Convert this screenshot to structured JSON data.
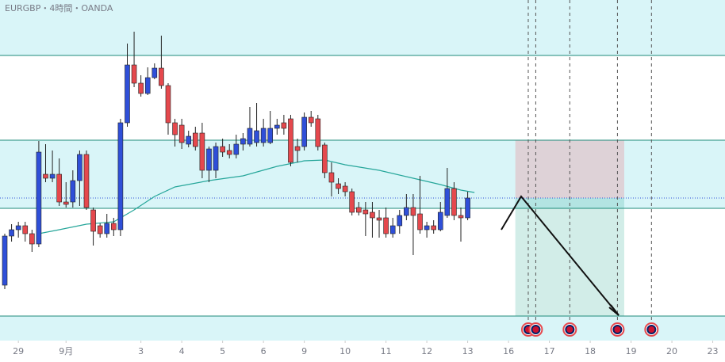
{
  "chart_data": {
    "type": "candlestick",
    "title": "EURGBP・4時間・OANDA",
    "xlim": [
      -0.7,
      105.8
    ],
    "ylim": [
      0.8391,
      0.852
    ],
    "xticks": [
      {
        "value": 2,
        "label": "29"
      },
      {
        "value": 9,
        "label": "9月"
      },
      {
        "value": 20,
        "label": "3"
      },
      {
        "value": 26,
        "label": "4"
      },
      {
        "value": 32,
        "label": "5"
      },
      {
        "value": 38,
        "label": "6"
      },
      {
        "value": 44,
        "label": "9"
      },
      {
        "value": 50,
        "label": "10"
      },
      {
        "value": 56,
        "label": "11"
      },
      {
        "value": 62,
        "label": "12"
      },
      {
        "value": 68,
        "label": "13"
      },
      {
        "value": 74,
        "label": "16"
      },
      {
        "value": 80,
        "label": "17"
      },
      {
        "value": 86,
        "label": "18"
      },
      {
        "value": 92,
        "label": "19"
      },
      {
        "value": 98,
        "label": "20"
      },
      {
        "value": 104,
        "label": "23"
      }
    ],
    "up_color": "#2f4fd8",
    "down_color": "#e5484d",
    "open": [
      0.8412,
      0.84306,
      0.8433,
      0.84345,
      0.84315,
      0.84276,
      0.8454,
      0.84525,
      0.8454,
      0.84435,
      0.84435,
      0.84516,
      0.84615,
      0.84405,
      0.84345,
      0.84315,
      0.84354,
      0.8433,
      0.84735,
      0.84954,
      0.84885,
      0.84846,
      0.84906,
      0.84942,
      0.84876,
      0.84735,
      0.84726,
      0.84654,
      0.84696,
      0.84696,
      0.84555,
      0.84555,
      0.84645,
      0.8463,
      0.84615,
      0.84654,
      0.84654,
      0.8466,
      0.8466,
      0.8466,
      0.84714,
      0.84735,
      0.8475,
      0.84645,
      0.84645,
      0.84756,
      0.8475,
      0.84651,
      0.84546,
      0.84504,
      0.84495,
      0.84474,
      0.84414,
      0.84405,
      0.84396,
      0.84375,
      0.84375,
      0.84315,
      0.84345,
      0.84384,
      0.84414,
      0.8439,
      0.8433,
      0.84345,
      0.8433,
      0.84384,
      0.84486,
      0.84384,
      0.84375
    ],
    "high": [
      0.84315,
      0.84351,
      0.8436,
      0.8436,
      0.8433,
      0.84666,
      0.84654,
      0.8463,
      0.846,
      0.8451,
      0.84555,
      0.8463,
      0.8463,
      0.84414,
      0.84354,
      0.8439,
      0.84375,
      0.8475,
      0.85035,
      0.8508,
      0.84915,
      0.84945,
      0.8496,
      0.85065,
      0.84885,
      0.8475,
      0.8475,
      0.84705,
      0.8472,
      0.84735,
      0.84645,
      0.8466,
      0.84675,
      0.84654,
      0.8469,
      0.84696,
      0.84795,
      0.8481,
      0.8475,
      0.8478,
      0.8475,
      0.84765,
      0.84765,
      0.84675,
      0.84774,
      0.8478,
      0.84765,
      0.8466,
      0.84585,
      0.84525,
      0.8451,
      0.84486,
      0.84435,
      0.84435,
      0.84435,
      0.84405,
      0.84414,
      0.84375,
      0.84405,
      0.84465,
      0.84465,
      0.84534,
      0.8436,
      0.84366,
      0.84435,
      0.84564,
      0.8451,
      0.84414,
      0.84474
    ],
    "low": [
      0.84105,
      0.84285,
      0.843,
      0.84285,
      0.84246,
      0.84264,
      0.8451,
      0.8451,
      0.8442,
      0.84414,
      0.84414,
      0.8442,
      0.84405,
      0.8427,
      0.843,
      0.843,
      0.84306,
      0.84306,
      0.8472,
      0.8487,
      0.84834,
      0.8484,
      0.849,
      0.84864,
      0.8469,
      0.84645,
      0.84636,
      0.84642,
      0.8463,
      0.84525,
      0.8451,
      0.84525,
      0.84606,
      0.846,
      0.846,
      0.8463,
      0.84645,
      0.84645,
      0.84645,
      0.84654,
      0.8469,
      0.8469,
      0.8457,
      0.84585,
      0.8463,
      0.8472,
      0.8463,
      0.84525,
      0.84456,
      0.84465,
      0.84456,
      0.84384,
      0.84384,
      0.84306,
      0.843,
      0.843,
      0.843,
      0.843,
      0.84315,
      0.84366,
      0.84234,
      0.84315,
      0.843,
      0.84315,
      0.84324,
      0.84375,
      0.84366,
      0.84285,
      0.84366
    ],
    "close": [
      0.84306,
      0.8433,
      0.84345,
      0.84315,
      0.84276,
      0.84624,
      0.84525,
      0.8454,
      0.84435,
      0.84426,
      0.84516,
      0.84615,
      0.84414,
      0.84324,
      0.84315,
      0.84354,
      0.8433,
      0.84735,
      0.84954,
      0.84885,
      0.84846,
      0.84906,
      0.84942,
      0.84876,
      0.84735,
      0.8469,
      0.8466,
      0.84684,
      0.84645,
      0.84555,
      0.84636,
      0.84645,
      0.84624,
      0.84615,
      0.84654,
      0.84675,
      0.84714,
      0.84705,
      0.84714,
      0.84714,
      0.84726,
      0.84714,
      0.84585,
      0.8463,
      0.84756,
      0.84735,
      0.84645,
      0.84546,
      0.8451,
      0.84486,
      0.84474,
      0.84396,
      0.84396,
      0.8439,
      0.84375,
      0.84366,
      0.84315,
      0.84345,
      0.84384,
      0.84414,
      0.84384,
      0.8433,
      0.84345,
      0.8433,
      0.84396,
      0.84486,
      0.84384,
      0.84375,
      0.8445
    ],
    "ma": {
      "color": "#26a69a",
      "x": [
        5,
        8,
        12,
        16,
        19,
        22,
        25,
        30,
        35,
        40,
        44,
        47,
        50,
        55,
        60,
        64,
        67,
        69
      ],
      "values": [
        0.84315,
        0.8433,
        0.84351,
        0.8436,
        0.84405,
        0.84456,
        0.84492,
        0.84516,
        0.84534,
        0.8457,
        0.84591,
        0.84594,
        0.84576,
        0.84555,
        0.84525,
        0.84501,
        0.8448,
        0.84471
      ]
    },
    "levels": [
      0.8499,
      0.84669,
      0.84411,
      0.84003
    ],
    "level_color": "#1e8a7a",
    "bands": [
      [
        0.852,
        0.8499
      ],
      [
        0.84669,
        0.84411
      ],
      [
        0.84003,
        0.8391
      ]
    ],
    "band_color": "#d9f5f8",
    "last_price": 0.8445,
    "position": {
      "start": 75,
      "end": 91,
      "entry": 0.8445,
      "stop": 0.84669,
      "target": 0.84003
    },
    "events": [
      76.9,
      78,
      83,
      90,
      95
    ]
  }
}
